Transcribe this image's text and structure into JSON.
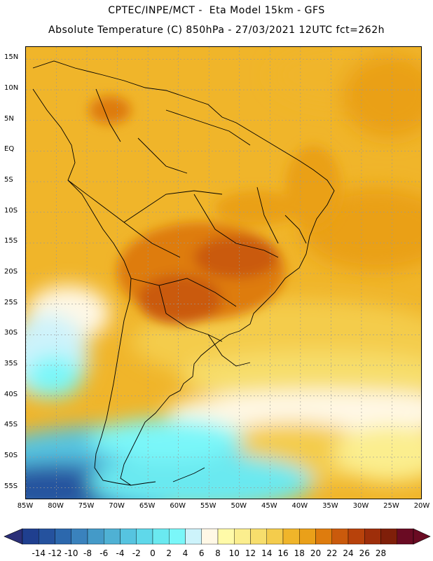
{
  "header": {
    "line1": "CPTEC/INPE/MCT -  Eta Model 15km - GFS",
    "line2": "Absolute Temperature (C) 850hPa - 27/03/2021 12UTC fct=262h"
  },
  "map": {
    "lon_labels": [
      "85W",
      "80W",
      "75W",
      "70W",
      "65W",
      "60W",
      "55W",
      "50W",
      "45W",
      "40W",
      "35W",
      "30W",
      "25W",
      "20W"
    ],
    "lat_labels": [
      "15N",
      "10N",
      "5N",
      "EQ",
      "5S",
      "10S",
      "15S",
      "20S",
      "25S",
      "30S",
      "35S",
      "40S",
      "45S",
      "50S",
      "55S"
    ],
    "lon_range": [
      -85,
      -20
    ],
    "lat_range": [
      17,
      -57
    ]
  },
  "colorbar": {
    "labels": [
      "-14",
      "-12",
      "-10",
      "-8",
      "-6",
      "-4",
      "-2",
      "0",
      "2",
      "4",
      "6",
      "8",
      "10",
      "12",
      "14",
      "16",
      "18",
      "20",
      "22",
      "24",
      "26",
      "28"
    ],
    "colors": [
      "#1f3f8f",
      "#25529e",
      "#2c68ad",
      "#3a82bd",
      "#449ac8",
      "#4fb1d4",
      "#56c4e0",
      "#5fd8ea",
      "#6ae9f0",
      "#7af7f9",
      "#cdf3fb",
      "#fff8e6",
      "#fffaa8",
      "#fbee8e",
      "#f7de6c",
      "#f4cc4c",
      "#f0b52a",
      "#eaa019",
      "#de7c0e",
      "#ca5a0c",
      "#b8420b",
      "#9e2e0a",
      "#7f1f09",
      "#6a0b23"
    ],
    "left_arrow_color": "#2b2f78",
    "right_arrow_color": "#6a0b23"
  }
}
